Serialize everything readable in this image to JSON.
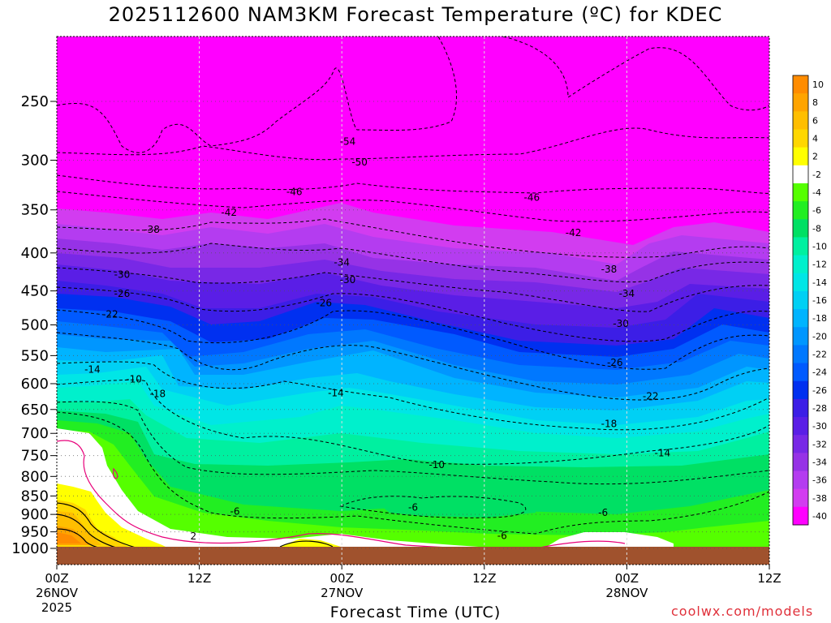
{
  "title": "2025112600 NAM3KM Forecast Temperature (ºC) for KDEC",
  "credit": "coolwx.com/models",
  "chart_data": {
    "type": "heatmap",
    "title": "2025112600 NAM3KM Forecast Temperature (ºC) for KDEC",
    "xlabel": "Forecast Time (UTC)",
    "ylabel": "",
    "y_axis": {
      "unit": "hPa",
      "ticks": [
        250,
        300,
        350,
        400,
        450,
        500,
        550,
        600,
        650,
        700,
        750,
        800,
        850,
        900,
        950,
        1000
      ],
      "range": [
        1000,
        200
      ],
      "scale": "log"
    },
    "x_axis": {
      "range_hours": [
        0,
        60
      ],
      "ticks": [
        {
          "hour": 0,
          "label": "00Z",
          "date": "26NOV",
          "year": "2025"
        },
        {
          "hour": 12,
          "label": "12Z",
          "date": "",
          "year": ""
        },
        {
          "hour": 24,
          "label": "00Z",
          "date": "27NOV",
          "year": ""
        },
        {
          "hour": 36,
          "label": "12Z",
          "date": "",
          "year": ""
        },
        {
          "hour": 48,
          "label": "00Z",
          "date": "28NOV",
          "year": ""
        },
        {
          "hour": 60,
          "label": "12Z",
          "date": "",
          "year": ""
        }
      ]
    },
    "grid": true,
    "colorbar": {
      "levels": [
        10,
        8,
        6,
        4,
        2,
        -2,
        -4,
        -6,
        -8,
        -10,
        -12,
        -14,
        -16,
        -18,
        -20,
        -22,
        -24,
        -26,
        -28,
        -30,
        -32,
        -34,
        -36,
        -38,
        -40
      ],
      "colors": [
        "#ff8c00",
        "#ffa400",
        "#ffbe00",
        "#ffd700",
        "#ffff00",
        "#ffffff",
        "#55ff00",
        "#22ee22",
        "#00e064",
        "#00f0a0",
        "#00f0cc",
        "#00e6e6",
        "#00d0f4",
        "#00b4ff",
        "#0096ff",
        "#0078ff",
        "#005aff",
        "#0030f0",
        "#3c1ee6",
        "#5a1ee6",
        "#7828e6",
        "#9632e6",
        "#b43cf0",
        "#d23cf0",
        "#ff00ff"
      ],
      "placement": "right"
    },
    "contour_labels": [
      {
        "value": -54,
        "hour": 24.5,
        "p": 283
      },
      {
        "value": -50,
        "hour": 25.5,
        "p": 302
      },
      {
        "value": -46,
        "hour": 20.0,
        "p": 331
      },
      {
        "value": -46,
        "hour": 40.0,
        "p": 337
      },
      {
        "value": -42,
        "hour": 14.5,
        "p": 353
      },
      {
        "value": -42,
        "hour": 43.5,
        "p": 376
      },
      {
        "value": -38,
        "hour": 8.0,
        "p": 372
      },
      {
        "value": -38,
        "hour": 46.5,
        "p": 421
      },
      {
        "value": -34,
        "hour": 24.0,
        "p": 412
      },
      {
        "value": -34,
        "hour": 48.0,
        "p": 454
      },
      {
        "value": -30,
        "hour": 5.5,
        "p": 428
      },
      {
        "value": -30,
        "hour": 24.5,
        "p": 435
      },
      {
        "value": -30,
        "hour": 47.5,
        "p": 498
      },
      {
        "value": -26,
        "hour": 5.5,
        "p": 454
      },
      {
        "value": -26,
        "hour": 22.5,
        "p": 467
      },
      {
        "value": -26,
        "hour": 47.0,
        "p": 562
      },
      {
        "value": -22,
        "hour": 4.5,
        "p": 484
      },
      {
        "value": -22,
        "hour": 50.0,
        "p": 624
      },
      {
        "value": -18,
        "hour": 8.5,
        "p": 619
      },
      {
        "value": -18,
        "hour": 46.5,
        "p": 680
      },
      {
        "value": -14,
        "hour": 3.0,
        "p": 574
      },
      {
        "value": -14,
        "hour": 23.5,
        "p": 618
      },
      {
        "value": -14,
        "hour": 51.0,
        "p": 744
      },
      {
        "value": -10,
        "hour": 6.5,
        "p": 592
      },
      {
        "value": -10,
        "hour": 32.0,
        "p": 772
      },
      {
        "value": -6,
        "hour": 15.0,
        "p": 892
      },
      {
        "value": -6,
        "hour": 30.0,
        "p": 881
      },
      {
        "value": -6,
        "hour": 37.5,
        "p": 962
      },
      {
        "value": -6,
        "hour": 46.0,
        "p": 895
      },
      {
        "value": 2,
        "hour": 11.5,
        "p": 963
      }
    ]
  }
}
